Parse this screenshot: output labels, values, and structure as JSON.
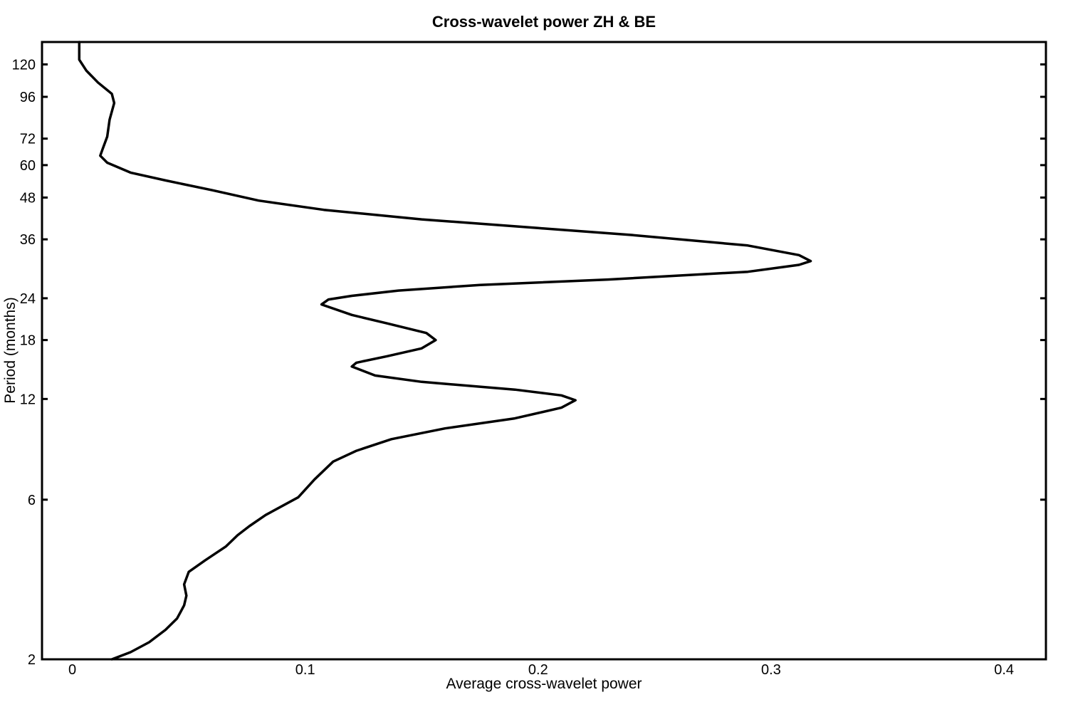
{
  "chart_data": {
    "type": "line",
    "title": "Cross-wavelet power ZH & BE",
    "xlabel": "Average cross-wavelet power",
    "ylabel": "Period (months)",
    "xlim": [
      -0.013,
      0.418
    ],
    "ylim": [
      2,
      140
    ],
    "yscale": "log",
    "x_ticks": [
      0,
      0.1,
      0.2,
      0.3,
      0.4
    ],
    "x_tick_labels": [
      "0",
      "0.1",
      "0.2",
      "0.3",
      "0.4"
    ],
    "y_ticks": [
      2,
      6,
      12,
      18,
      24,
      36,
      48,
      60,
      72,
      96,
      120
    ],
    "y_tick_labels": [
      "2",
      "6",
      "12",
      "18",
      "24",
      "36",
      "48",
      "60",
      "72",
      "96",
      "120"
    ],
    "grid": false,
    "legend": false,
    "line_color": "#000000",
    "series": [
      {
        "points": [
          [
            0.017,
            2.0
          ],
          [
            0.025,
            2.1
          ],
          [
            0.033,
            2.25
          ],
          [
            0.04,
            2.45
          ],
          [
            0.045,
            2.65
          ],
          [
            0.048,
            2.9
          ],
          [
            0.049,
            3.1
          ],
          [
            0.048,
            3.35
          ],
          [
            0.05,
            3.65
          ],
          [
            0.057,
            3.95
          ],
          [
            0.066,
            4.35
          ],
          [
            0.071,
            4.7
          ],
          [
            0.076,
            5.0
          ],
          [
            0.083,
            5.4
          ],
          [
            0.097,
            6.1
          ],
          [
            0.104,
            6.9
          ],
          [
            0.112,
            7.8
          ],
          [
            0.122,
            8.4
          ],
          [
            0.137,
            9.1
          ],
          [
            0.16,
            9.8
          ],
          [
            0.19,
            10.5
          ],
          [
            0.21,
            11.3
          ],
          [
            0.216,
            11.9
          ],
          [
            0.21,
            12.3
          ],
          [
            0.19,
            12.8
          ],
          [
            0.15,
            13.5
          ],
          [
            0.13,
            14.1
          ],
          [
            0.12,
            15.0
          ],
          [
            0.122,
            15.4
          ],
          [
            0.135,
            16.1
          ],
          [
            0.15,
            17.0
          ],
          [
            0.156,
            18.0
          ],
          [
            0.152,
            18.9
          ],
          [
            0.135,
            20.2
          ],
          [
            0.12,
            21.4
          ],
          [
            0.107,
            23.0
          ],
          [
            0.11,
            23.8
          ],
          [
            0.12,
            24.4
          ],
          [
            0.14,
            25.3
          ],
          [
            0.175,
            26.3
          ],
          [
            0.23,
            27.3
          ],
          [
            0.29,
            28.8
          ],
          [
            0.312,
            30.2
          ],
          [
            0.317,
            31.0
          ],
          [
            0.312,
            32.3
          ],
          [
            0.29,
            34.5
          ],
          [
            0.24,
            37.1
          ],
          [
            0.2,
            38.9
          ],
          [
            0.15,
            41.3
          ],
          [
            0.108,
            44.1
          ],
          [
            0.08,
            47.0
          ],
          [
            0.06,
            50.5
          ],
          [
            0.04,
            54.0
          ],
          [
            0.025,
            57.0
          ],
          [
            0.015,
            61.0
          ],
          [
            0.012,
            64.0
          ],
          [
            0.013,
            67.0
          ],
          [
            0.015,
            73.0
          ],
          [
            0.016,
            82.0
          ],
          [
            0.018,
            92.0
          ],
          [
            0.017,
            98.0
          ],
          [
            0.011,
            106.0
          ],
          [
            0.006,
            115.0
          ],
          [
            0.003,
            124.0
          ],
          [
            0.003,
            132.0
          ],
          [
            0.003,
            140.0
          ]
        ]
      }
    ]
  }
}
